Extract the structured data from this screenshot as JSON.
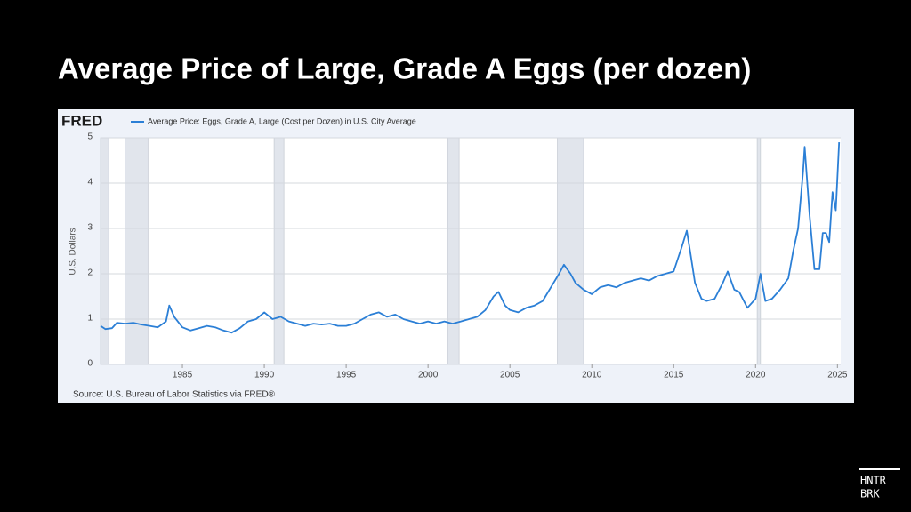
{
  "page": {
    "heading": "Average Price of Large, Grade A Eggs (per dozen)",
    "watermark_top": "HNTR",
    "watermark_bottom": "BRK"
  },
  "chart_data": {
    "type": "line",
    "logo": "FRED",
    "series": [
      {
        "name": "Average Price: Eggs, Grade A, Large (Cost per Dozen) in U.S. City Average",
        "color": "#2b7fd6",
        "x": [
          1980.0,
          1980.3,
          1980.7,
          1981.0,
          1981.5,
          1982.0,
          1982.5,
          1983.0,
          1983.5,
          1984.0,
          1984.2,
          1984.5,
          1985.0,
          1985.5,
          1986.0,
          1986.5,
          1987.0,
          1987.5,
          1988.0,
          1988.5,
          1989.0,
          1989.5,
          1990.0,
          1990.5,
          1991.0,
          1991.5,
          1992.0,
          1992.5,
          1993.0,
          1993.5,
          1994.0,
          1994.5,
          1995.0,
          1995.5,
          1996.0,
          1996.5,
          1997.0,
          1997.5,
          1998.0,
          1998.5,
          1999.0,
          1999.5,
          2000.0,
          2000.5,
          2001.0,
          2001.5,
          2002.0,
          2002.5,
          2003.0,
          2003.5,
          2004.0,
          2004.3,
          2004.7,
          2005.0,
          2005.5,
          2006.0,
          2006.5,
          2007.0,
          2007.5,
          2008.0,
          2008.3,
          2008.7,
          2009.0,
          2009.5,
          2010.0,
          2010.5,
          2011.0,
          2011.5,
          2012.0,
          2012.5,
          2013.0,
          2013.5,
          2014.0,
          2014.5,
          2015.0,
          2015.5,
          2015.8,
          2016.0,
          2016.3,
          2016.7,
          2017.0,
          2017.5,
          2018.0,
          2018.3,
          2018.7,
          2019.0,
          2019.5,
          2020.0,
          2020.3,
          2020.6,
          2021.0,
          2021.5,
          2022.0,
          2022.3,
          2022.6,
          2022.9,
          2023.0,
          2023.3,
          2023.6,
          2023.9,
          2024.1,
          2024.3,
          2024.5,
          2024.7,
          2024.9,
          2025.1
        ],
        "values": [
          0.85,
          0.78,
          0.8,
          0.92,
          0.9,
          0.92,
          0.88,
          0.85,
          0.82,
          0.95,
          1.3,
          1.05,
          0.82,
          0.75,
          0.8,
          0.85,
          0.82,
          0.75,
          0.7,
          0.8,
          0.95,
          1.0,
          1.15,
          1.0,
          1.05,
          0.95,
          0.9,
          0.85,
          0.9,
          0.88,
          0.9,
          0.85,
          0.85,
          0.9,
          1.0,
          1.1,
          1.15,
          1.05,
          1.1,
          1.0,
          0.95,
          0.9,
          0.95,
          0.9,
          0.95,
          0.9,
          0.95,
          1.0,
          1.05,
          1.2,
          1.5,
          1.6,
          1.3,
          1.2,
          1.15,
          1.25,
          1.3,
          1.4,
          1.7,
          2.0,
          2.2,
          2.0,
          1.8,
          1.65,
          1.55,
          1.7,
          1.75,
          1.7,
          1.8,
          1.85,
          1.9,
          1.85,
          1.95,
          2.0,
          2.05,
          2.6,
          2.95,
          2.5,
          1.8,
          1.45,
          1.4,
          1.45,
          1.8,
          2.05,
          1.65,
          1.6,
          1.25,
          1.45,
          2.0,
          1.4,
          1.45,
          1.65,
          1.9,
          2.5,
          3.0,
          4.25,
          4.8,
          3.3,
          2.1,
          2.1,
          2.9,
          2.9,
          2.7,
          3.8,
          3.4,
          4.9
        ]
      }
    ],
    "recessions": [
      [
        1980.0,
        1980.5
      ],
      [
        1981.5,
        1982.9
      ],
      [
        1990.6,
        1991.2
      ],
      [
        2001.2,
        2001.9
      ],
      [
        2007.9,
        2009.5
      ],
      [
        2020.1,
        2020.3
      ]
    ],
    "y_label": "U.S. Dollars",
    "source": "Source: U.S. Bureau of Labor Statistics via FRED®",
    "xlim": [
      1980.0,
      2025.2
    ],
    "xticks": [
      1985,
      1990,
      1995,
      2000,
      2005,
      2010,
      2015,
      2020,
      2025
    ],
    "ylim": [
      0,
      5
    ],
    "yticks": [
      0,
      1,
      2,
      3,
      4,
      5
    ],
    "grid": true
  }
}
